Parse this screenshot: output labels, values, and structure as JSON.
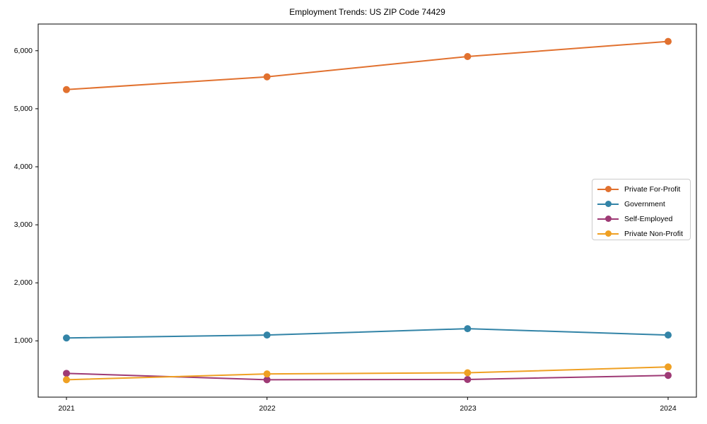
{
  "chart_data": {
    "type": "line",
    "title": "Employment Trends: US ZIP Code 74429",
    "categories": [
      "2021",
      "2022",
      "2023",
      "2024"
    ],
    "series": [
      {
        "name": "Private For-Profit",
        "color": "#e1712f",
        "values": [
          5330,
          5550,
          5900,
          6160
        ]
      },
      {
        "name": "Government",
        "color": "#3384a7",
        "values": [
          1050,
          1100,
          1210,
          1100
        ]
      },
      {
        "name": "Self-Employed",
        "color": "#9e3a75",
        "values": [
          440,
          330,
          335,
          405
        ]
      },
      {
        "name": "Private Non-Profit",
        "color": "#efa023",
        "values": [
          330,
          430,
          450,
          550
        ]
      }
    ],
    "xlabel": "",
    "ylabel": "",
    "yticks": [
      1000,
      2000,
      3000,
      4000,
      5000,
      6000
    ],
    "yticklabels": [
      "1,000",
      "2,000",
      "3,000",
      "4,000",
      "5,000",
      "6,000"
    ],
    "ylim": [
      30,
      6460
    ],
    "grid": false,
    "legend_position": "center-right",
    "marker": "circle",
    "line_width": 2,
    "marker_size": 10,
    "frame": "full-box",
    "background": "#ffffff"
  }
}
